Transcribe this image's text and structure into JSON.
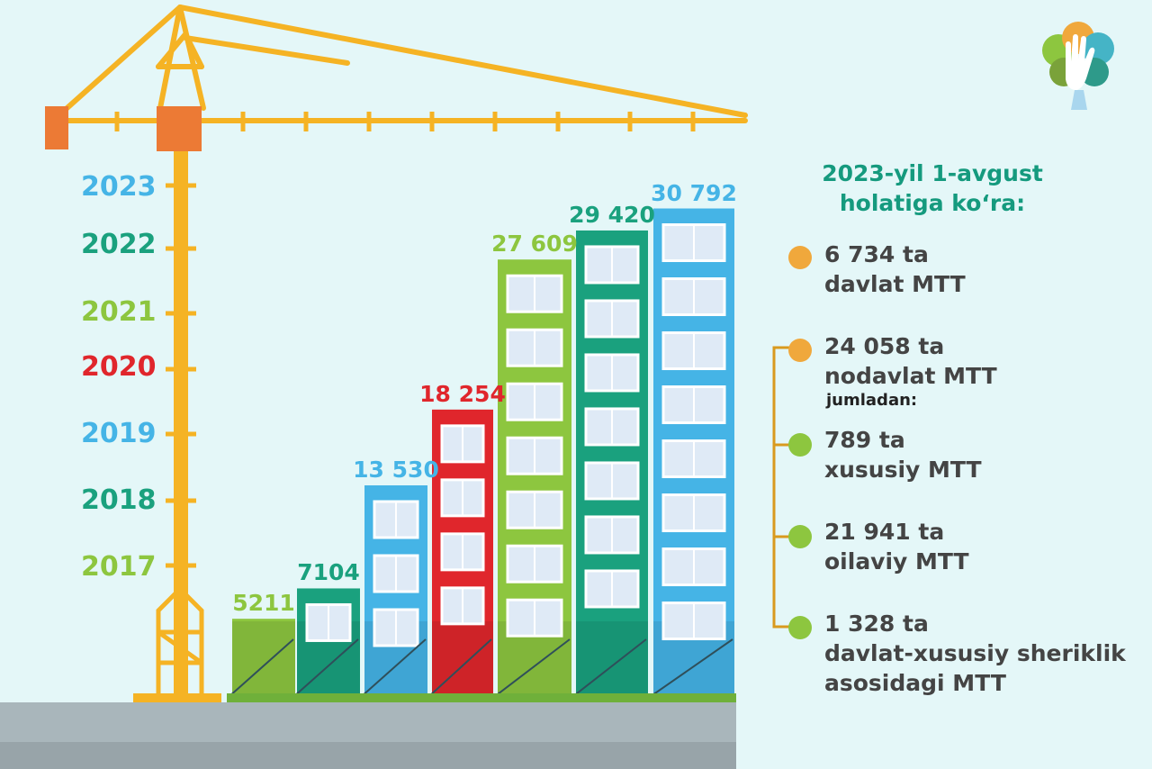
{
  "chart_data": {
    "type": "bar",
    "categories": [
      "2017",
      "2018",
      "2019",
      "2020",
      "2021",
      "2022",
      "2023"
    ],
    "values": [
      5211,
      7104,
      13530,
      18254,
      27609,
      29420,
      30792
    ],
    "value_labels": [
      "5211",
      "7104",
      "13 530",
      "18 254",
      "27 609",
      "29 420",
      "30 792"
    ],
    "ylim": [
      0,
      32000
    ],
    "bar_colors": [
      "#8dc63f",
      "#1aa17e",
      "#45b4e6",
      "#e0262c",
      "#8dc63f",
      "#1aa17e",
      "#45b4e6"
    ],
    "year_colors": [
      "#8dc63f",
      "#1aa17e",
      "#45b4e6",
      "#e0262c",
      "#8dc63f",
      "#1aa17e",
      "#45b4e6"
    ]
  },
  "info": {
    "title_line1": "2023-yil 1-avgust",
    "title_line2": "holatiga ko‘ra:",
    "items": [
      {
        "line1": "6 734 ta",
        "line2": "davlat MTT",
        "dot_color": "#f0a83c"
      },
      {
        "line1": "24 058 ta",
        "line2": "nodavlat MTT",
        "dot_color": "#f0a83c"
      },
      {
        "line1": "789 ta",
        "line2": "xususiy MTT",
        "dot_color": "#8dc63f"
      },
      {
        "line1": "21 941 ta",
        "line2": "oilaviy MTT",
        "dot_color": "#8dc63f"
      },
      {
        "line1": "1 328 ta",
        "line2": "davlat-xususiy sheriklik",
        "line3": "asosidagi MTT",
        "dot_color": "#8dc63f"
      }
    ],
    "subheading": "jumladan:"
  },
  "colors": {
    "crane": "#f5b324",
    "crane_accent": "#ec7a35",
    "ground": "#a9b6bb",
    "ground_dark": "#98a4a9",
    "bracket": "#d99a1e"
  },
  "logo_icon": "hand-tree-logo-icon"
}
